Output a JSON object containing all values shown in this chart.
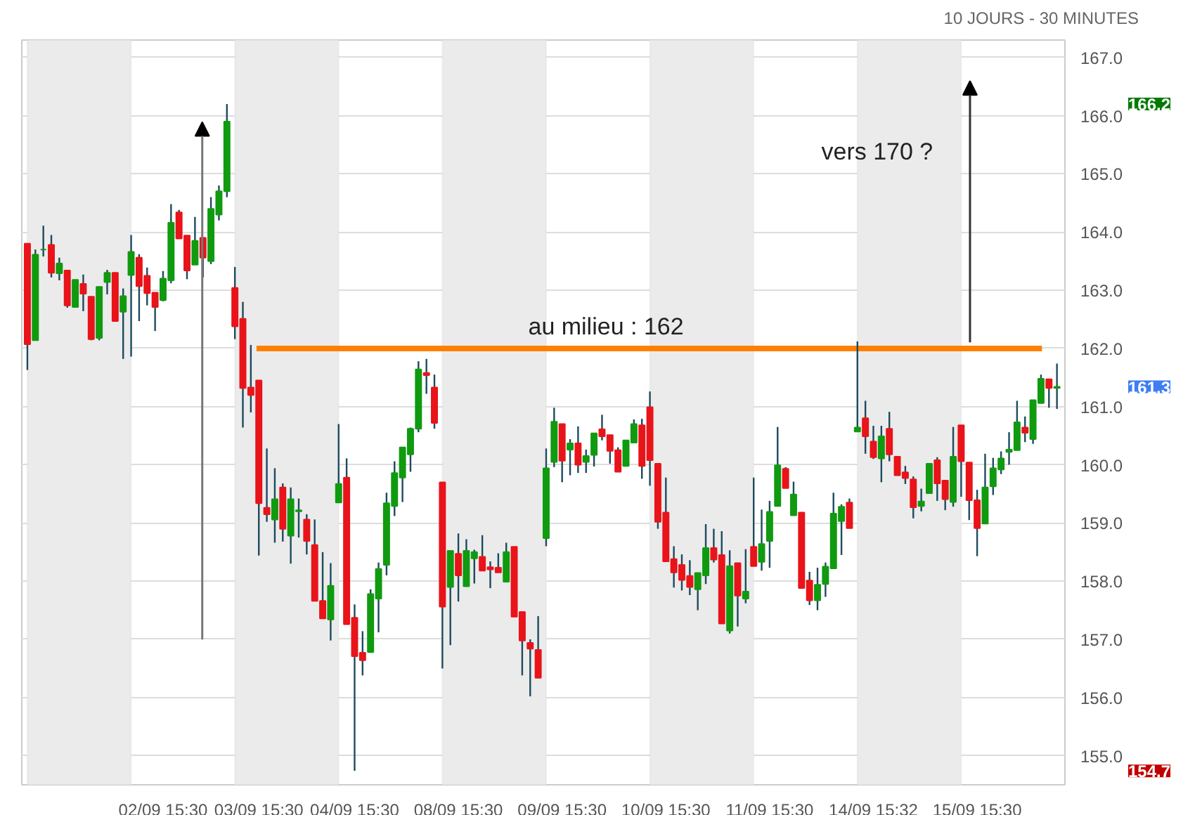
{
  "chart_data": {
    "type": "candlestick",
    "subtitle": "10 JOURS - 30 MINUTES",
    "categories": [
      null,
      null,
      null,
      null,
      null,
      null,
      null,
      null,
      null,
      null,
      null,
      null,
      null,
      null,
      null,
      null,
      null,
      "02/09 15:30",
      null,
      null,
      null,
      null,
      null,
      null,
      null,
      null,
      null,
      null,
      null,
      "03/09 15:30",
      null,
      null,
      null,
      null,
      null,
      null,
      null,
      null,
      null,
      null,
      null,
      "04/09 15:30",
      null,
      null,
      null,
      null,
      null,
      null,
      null,
      null,
      null,
      null,
      null,
      null,
      "08/09 15:30",
      null,
      null,
      null,
      null,
      null,
      null,
      null,
      null,
      null,
      null,
      null,
      null,
      "09/09 15:30",
      null,
      null,
      null,
      null,
      null,
      null,
      null,
      null,
      null,
      null,
      null,
      null,
      "10/09 15:30",
      null,
      null,
      null,
      null,
      null,
      null,
      null,
      null,
      null,
      null,
      null,
      null,
      "11/09 15:30",
      null,
      null,
      null,
      null,
      null,
      null,
      null,
      null,
      null,
      null,
      null,
      null,
      "14/09 15:32",
      null,
      null,
      null,
      null,
      null,
      null,
      null,
      null,
      null,
      null,
      null,
      null,
      "15/09 15:30",
      null,
      null,
      null,
      null,
      null,
      null,
      null,
      null,
      null,
      null
    ],
    "ohlc": [
      [
        163.8,
        163.8,
        161.63,
        162.07
      ],
      [
        162.14,
        163.7,
        162.14,
        163.61
      ],
      [
        163.7,
        164.11,
        163.58,
        163.7
      ],
      [
        163.78,
        163.95,
        163.22,
        163.3
      ],
      [
        163.29,
        163.56,
        163.17,
        163.46
      ],
      [
        163.34,
        163.34,
        162.7,
        162.74
      ],
      [
        162.71,
        163.18,
        162.71,
        163.18
      ],
      [
        163.11,
        163.27,
        162.64,
        162.94
      ],
      [
        162.89,
        162.89,
        162.14,
        162.16
      ],
      [
        162.18,
        163.06,
        162.14,
        163.06
      ],
      [
        163.14,
        163.35,
        162.93,
        163.3
      ],
      [
        163.3,
        163.3,
        162.47,
        162.47
      ],
      [
        162.63,
        163.03,
        161.82,
        162.9
      ],
      [
        163.26,
        163.95,
        161.86,
        163.66
      ],
      [
        163.56,
        163.62,
        162.47,
        163.07
      ],
      [
        163.25,
        163.39,
        162.74,
        162.95
      ],
      [
        162.96,
        162.96,
        162.3,
        162.71
      ],
      [
        162.83,
        163.33,
        162.81,
        163.2
      ],
      [
        163.17,
        164.48,
        163.12,
        164.16
      ],
      [
        164.34,
        164.38,
        163.89,
        163.89
      ],
      [
        163.94,
        163.94,
        163.19,
        163.34
      ],
      [
        163.44,
        164.26,
        163.44,
        163.85
      ],
      [
        163.9,
        163.9,
        163.22,
        163.56
      ],
      [
        163.5,
        164.6,
        163.45,
        164.4
      ],
      [
        164.3,
        164.8,
        164.2,
        164.7
      ],
      [
        164.7,
        166.2,
        164.6,
        165.9
      ],
      [
        163.04,
        163.4,
        162.16,
        162.38
      ],
      [
        162.51,
        162.8,
        160.64,
        161.32
      ],
      [
        161.33,
        162.06,
        160.9,
        161.2
      ],
      [
        161.45,
        161.45,
        158.44,
        159.34
      ],
      [
        159.26,
        160.28,
        159.02,
        159.15
      ],
      [
        159.06,
        159.94,
        158.66,
        159.41
      ],
      [
        159.61,
        159.68,
        158.68,
        158.9
      ],
      [
        158.78,
        159.61,
        158.3,
        159.41
      ],
      [
        159.2,
        159.42,
        158.75,
        159.22
      ],
      [
        159.06,
        159.15,
        158.46,
        158.69
      ],
      [
        158.62,
        159.06,
        157.66,
        157.66
      ],
      [
        157.66,
        158.5,
        157.36,
        157.36
      ],
      [
        157.34,
        158.31,
        156.98,
        157.92
      ],
      [
        159.35,
        160.7,
        159.35,
        159.67
      ],
      [
        159.78,
        160.11,
        157.26,
        157.26
      ],
      [
        157.37,
        157.6,
        154.74,
        156.71
      ],
      [
        156.77,
        157.14,
        156.38,
        156.64
      ],
      [
        156.78,
        157.86,
        156.78,
        157.78
      ],
      [
        157.7,
        158.32,
        157.12,
        158.21
      ],
      [
        158.28,
        159.52,
        158.1,
        159.34
      ],
      [
        159.29,
        160.06,
        159.12,
        159.86
      ],
      [
        159.78,
        160.3,
        159.36,
        160.3
      ],
      [
        160.18,
        160.64,
        159.88,
        160.62
      ],
      [
        160.62,
        161.78,
        160.56,
        161.64
      ],
      [
        161.58,
        161.82,
        161.22,
        161.54
      ],
      [
        161.33,
        161.55,
        160.62,
        160.72
      ],
      [
        159.7,
        159.7,
        156.5,
        157.56
      ],
      [
        157.9,
        158.52,
        156.9,
        158.52
      ],
      [
        158.47,
        158.82,
        157.65,
        158.1
      ],
      [
        157.91,
        158.72,
        157.91,
        158.52
      ],
      [
        158.39,
        158.54,
        157.96,
        158.5
      ],
      [
        158.42,
        158.79,
        158.18,
        158.18
      ],
      [
        158.24,
        158.34,
        157.88,
        158.2
      ],
      [
        158.23,
        158.48,
        158.15,
        158.15
      ],
      [
        157.99,
        158.66,
        157.99,
        158.5
      ],
      [
        158.59,
        158.59,
        157.39,
        157.39
      ],
      [
        157.47,
        157.47,
        156.38,
        156.98
      ],
      [
        156.94,
        157.0,
        156.02,
        156.84
      ],
      [
        156.82,
        157.4,
        156.34,
        156.34
      ],
      [
        158.74,
        160.28,
        158.6,
        159.94
      ],
      [
        160.05,
        160.98,
        159.96,
        160.74
      ],
      [
        160.7,
        160.7,
        159.7,
        160.07
      ],
      [
        160.26,
        160.44,
        159.82,
        160.37
      ],
      [
        160.37,
        160.66,
        159.86,
        160.0
      ],
      [
        160.05,
        160.26,
        159.86,
        160.15
      ],
      [
        160.17,
        160.54,
        159.97,
        160.54
      ],
      [
        160.61,
        160.86,
        160.42,
        160.49
      ],
      [
        160.51,
        160.51,
        160.02,
        160.24
      ],
      [
        160.25,
        160.3,
        159.88,
        159.88
      ],
      [
        159.98,
        160.42,
        159.98,
        160.42
      ],
      [
        160.38,
        160.78,
        160.38,
        160.7
      ],
      [
        160.68,
        160.79,
        159.76,
        159.98
      ],
      [
        160.99,
        161.26,
        159.64,
        160.08
      ],
      [
        160.02,
        160.02,
        158.9,
        159.02
      ],
      [
        159.18,
        159.78,
        158.34,
        158.34
      ],
      [
        158.38,
        158.6,
        157.89,
        158.15
      ],
      [
        158.28,
        158.46,
        157.84,
        158.02
      ],
      [
        158.09,
        158.36,
        157.76,
        157.9
      ],
      [
        157.86,
        158.14,
        157.5,
        158.14
      ],
      [
        158.1,
        158.98,
        157.95,
        158.57
      ],
      [
        158.57,
        158.9,
        158.32,
        158.37
      ],
      [
        158.45,
        158.86,
        157.27,
        157.27
      ],
      [
        157.15,
        158.53,
        157.1,
        158.26
      ],
      [
        158.31,
        158.31,
        157.22,
        157.75
      ],
      [
        157.7,
        158.55,
        157.62,
        157.82
      ],
      [
        158.59,
        159.78,
        158.26,
        158.26
      ],
      [
        158.33,
        159.23,
        158.18,
        158.64
      ],
      [
        158.69,
        159.38,
        158.23,
        159.19
      ],
      [
        159.29,
        160.65,
        159.29,
        159.99
      ],
      [
        159.93,
        159.96,
        159.6,
        159.6
      ],
      [
        159.13,
        159.71,
        159.13,
        159.49
      ],
      [
        159.18,
        159.18,
        157.88,
        157.88
      ],
      [
        158.01,
        158.16,
        157.59,
        157.67
      ],
      [
        157.67,
        158.23,
        157.5,
        157.94
      ],
      [
        157.95,
        158.32,
        157.73,
        158.25
      ],
      [
        158.22,
        159.52,
        158.22,
        159.16
      ],
      [
        159.03,
        159.32,
        158.45,
        159.28
      ],
      [
        159.35,
        159.42,
        158.91,
        158.91
      ],
      [
        160.57,
        162.12,
        160.57,
        160.64
      ],
      [
        160.8,
        161.1,
        160.19,
        160.49
      ],
      [
        160.4,
        160.67,
        160.1,
        160.13
      ],
      [
        160.11,
        160.67,
        159.7,
        160.49
      ],
      [
        160.62,
        160.91,
        160.06,
        160.18
      ],
      [
        160.14,
        160.14,
        159.82,
        159.82
      ],
      [
        159.87,
        159.98,
        159.67,
        159.77
      ],
      [
        159.75,
        159.8,
        159.08,
        159.27
      ],
      [
        159.29,
        159.59,
        159.2,
        159.37
      ],
      [
        159.51,
        160.02,
        159.51,
        160.02
      ],
      [
        160.08,
        160.13,
        159.38,
        159.68
      ],
      [
        159.73,
        159.73,
        159.22,
        159.41
      ],
      [
        159.36,
        160.65,
        159.28,
        160.14
      ],
      [
        160.68,
        160.68,
        159.45,
        160.06
      ],
      [
        160.04,
        160.04,
        159.05,
        159.39
      ],
      [
        159.39,
        159.57,
        158.43,
        158.91
      ],
      [
        158.99,
        160.19,
        158.99,
        159.61
      ],
      [
        159.63,
        160.12,
        159.48,
        159.94
      ],
      [
        159.92,
        160.23,
        159.84,
        160.11
      ],
      [
        160.22,
        160.56,
        160.0,
        160.26
      ],
      [
        160.25,
        161.1,
        160.25,
        160.73
      ],
      [
        160.64,
        160.83,
        160.39,
        160.55
      ],
      [
        160.44,
        161.11,
        160.36,
        161.11
      ],
      [
        161.06,
        161.55,
        161.06,
        161.48
      ],
      [
        161.47,
        161.47,
        160.98,
        161.32
      ],
      [
        161.32,
        161.74,
        160.96,
        161.34
      ]
    ],
    "ref_lines": [
      {
        "axis": "y",
        "value": 162,
        "label": "au milieu : 162",
        "color": "#ff7f00"
      }
    ],
    "annotations": [
      "vers 170 ?",
      "166.2",
      "161.3",
      "154.7"
    ],
    "ylim": [
      154.5,
      167.3
    ],
    "yticks": [
      {
        "value": 155,
        "label": "155.0"
      },
      {
        "value": 156,
        "label": "156.0"
      },
      {
        "value": 157,
        "label": "157.0"
      },
      {
        "value": 158,
        "label": "158.0"
      },
      {
        "value": 159,
        "label": "159.0"
      },
      {
        "value": 160,
        "label": "160.0"
      },
      {
        "value": 161,
        "label": "161.0"
      },
      {
        "value": 162,
        "label": "162.0"
      },
      {
        "value": 163,
        "label": "163.0"
      },
      {
        "value": 164,
        "label": "164.0"
      },
      {
        "value": 165,
        "label": "165.0"
      },
      {
        "value": 166,
        "label": "166.0"
      },
      {
        "value": 167,
        "label": "167.0"
      }
    ],
    "grid": "y"
  }
}
